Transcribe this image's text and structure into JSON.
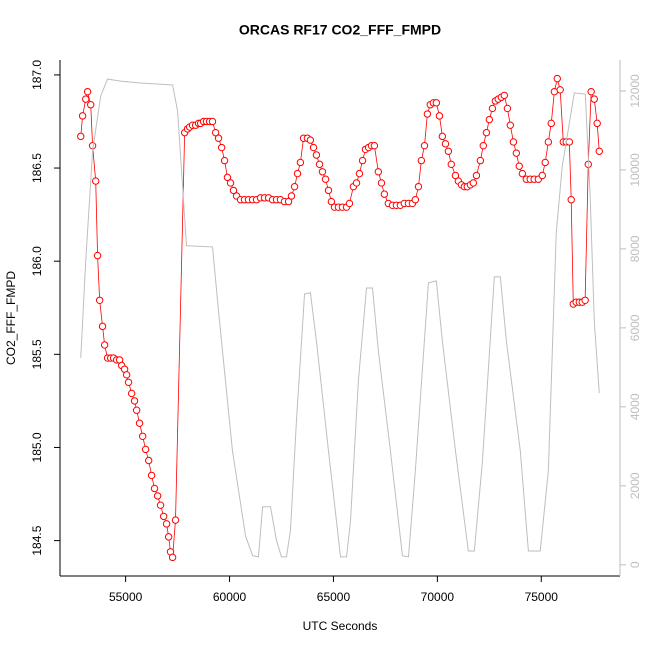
{
  "chart_data": {
    "type": "scatter",
    "title": "ORCAS RF17 CO2_FFF_FMPD",
    "x_label": "UTC Seconds",
    "y_label": "CO2_FFF_FMPD",
    "xlim": [
      51842,
      78788
    ],
    "xticks": [
      55000,
      60000,
      65000,
      70000,
      75000
    ],
    "ylim": [
      184.31,
      187.08
    ],
    "yticks": [
      184.5,
      {
        "value": 185,
        "label": "185.0"
      },
      185.5,
      {
        "value": 186,
        "label": "186.0"
      },
      186.5,
      {
        "value": 187,
        "label": "187.0"
      }
    ],
    "y2lim": [
      -284,
      12784
    ],
    "y2ticks": [
      0,
      2000,
      4000,
      6000,
      8000,
      10000,
      12000
    ],
    "series": [
      {
        "color": "#ff0000",
        "style": "points-lines",
        "x": [
          52840,
          52930,
          53080,
          53170,
          53320,
          53410,
          53560,
          53650,
          53750,
          53890,
          53990,
          54130,
          54280,
          54420,
          54570,
          54710,
          54810,
          54950,
          55050,
          55140,
          55290,
          55430,
          55530,
          55670,
          55820,
          55960,
          56110,
          56250,
          56390,
          56540,
          56680,
          56830,
          56970,
          57070,
          57160,
          57260,
          57400,
          57840,
          57980,
          58080,
          58220,
          58370,
          58510,
          58610,
          58750,
          58890,
          59040,
          59180,
          59330,
          59470,
          59620,
          59760,
          59900,
          60050,
          60190,
          60340,
          60530,
          60720,
          60910,
          61110,
          61300,
          61490,
          61680,
          61880,
          62070,
          62260,
          62450,
          62640,
          62840,
          62980,
          63130,
          63270,
          63410,
          63560,
          63750,
          63890,
          64040,
          64180,
          64330,
          64470,
          64620,
          64760,
          64900,
          65050,
          65240,
          65430,
          65630,
          65770,
          65960,
          66110,
          66250,
          66400,
          66540,
          66690,
          66830,
          66970,
          67160,
          67310,
          67450,
          67640,
          67840,
          68030,
          68220,
          68410,
          68610,
          68800,
          68940,
          69090,
          69230,
          69380,
          69520,
          69660,
          69810,
          69950,
          70100,
          70240,
          70390,
          70530,
          70670,
          70870,
          71010,
          71160,
          71300,
          71440,
          71590,
          71730,
          71880,
          72070,
          72210,
          72360,
          72500,
          72650,
          72790,
          72930,
          73080,
          73220,
          73370,
          73510,
          73660,
          73800,
          73940,
          74090,
          74280,
          74470,
          74660,
          74860,
          75050,
          75190,
          75340,
          75480,
          75630,
          75770,
          75910,
          76060,
          76200,
          76350,
          76440,
          76540,
          76680,
          76830,
          76970,
          77110,
          77260,
          77400,
          77550,
          77690,
          77790
        ],
        "values": [
          186.67,
          186.78,
          186.87,
          186.91,
          186.84,
          186.62,
          186.43,
          186.03,
          185.79,
          185.65,
          185.55,
          185.48,
          185.48,
          185.48,
          185.47,
          185.47,
          185.44,
          185.42,
          185.39,
          185.35,
          185.29,
          185.25,
          185.2,
          185.13,
          185.06,
          184.99,
          184.93,
          184.85,
          184.78,
          184.74,
          184.69,
          184.63,
          184.59,
          184.52,
          184.44,
          184.41,
          184.61,
          186.69,
          186.71,
          186.72,
          186.73,
          186.73,
          186.74,
          186.74,
          186.75,
          186.75,
          186.75,
          186.75,
          186.69,
          186.66,
          186.61,
          186.54,
          186.45,
          186.42,
          186.38,
          186.35,
          186.33,
          186.33,
          186.33,
          186.33,
          186.33,
          186.34,
          186.34,
          186.34,
          186.33,
          186.33,
          186.33,
          186.32,
          186.32,
          186.35,
          186.4,
          186.47,
          186.53,
          186.66,
          186.66,
          186.65,
          186.61,
          186.57,
          186.52,
          186.48,
          186.44,
          186.38,
          186.32,
          186.29,
          186.29,
          186.29,
          186.29,
          186.31,
          186.4,
          186.42,
          186.47,
          186.54,
          186.6,
          186.61,
          186.62,
          186.62,
          186.48,
          186.42,
          186.36,
          186.31,
          186.3,
          186.3,
          186.3,
          186.31,
          186.31,
          186.31,
          186.33,
          186.4,
          186.54,
          186.62,
          186.79,
          186.84,
          186.85,
          186.85,
          186.78,
          186.67,
          186.63,
          186.59,
          186.52,
          186.46,
          186.43,
          186.41,
          186.4,
          186.4,
          186.41,
          186.42,
          186.46,
          186.54,
          186.62,
          186.69,
          186.76,
          186.82,
          186.86,
          186.87,
          186.88,
          186.89,
          186.82,
          186.73,
          186.64,
          186.58,
          186.51,
          186.47,
          186.44,
          186.44,
          186.44,
          186.44,
          186.46,
          186.53,
          186.64,
          186.74,
          186.91,
          186.98,
          186.92,
          186.64,
          186.64,
          186.64,
          186.33,
          185.77,
          185.78,
          185.78,
          185.78,
          185.79,
          186.52,
          186.91,
          186.87,
          186.74,
          186.59
        ]
      },
      {
        "color": "#bebebe",
        "style": "line",
        "axis": "y2",
        "x": [
          52840,
          53080,
          53410,
          53800,
          54130,
          54760,
          55720,
          57260,
          57500,
          57930,
          59180,
          59470,
          60140,
          60770,
          61110,
          61390,
          61590,
          61970,
          62260,
          62500,
          62740,
          62930,
          63220,
          63610,
          63890,
          64180,
          64760,
          65340,
          65630,
          65820,
          66200,
          66590,
          66880,
          67160,
          67740,
          68320,
          68610,
          68940,
          69570,
          69950,
          70240,
          70870,
          71490,
          71780,
          72170,
          72740,
          73030,
          73320,
          73990,
          74380,
          74950,
          75340,
          75720,
          76010,
          76590,
          77120,
          77360,
          77550,
          77790
        ],
        "values": [
          5240,
          7700,
          10480,
          11870,
          12300,
          12250,
          12200,
          12150,
          11490,
          8080,
          8050,
          6430,
          2890,
          730,
          230,
          200,
          1470,
          1470,
          610,
          200,
          200,
          860,
          3650,
          6860,
          6890,
          5670,
          2890,
          200,
          200,
          1110,
          4660,
          7010,
          7010,
          5420,
          2890,
          230,
          200,
          2380,
          7140,
          7190,
          5670,
          2890,
          350,
          350,
          2630,
          7290,
          7290,
          5670,
          2890,
          350,
          350,
          2380,
          8410,
          10100,
          11950,
          11920,
          9220,
          6180,
          4350
        ]
      }
    ]
  }
}
